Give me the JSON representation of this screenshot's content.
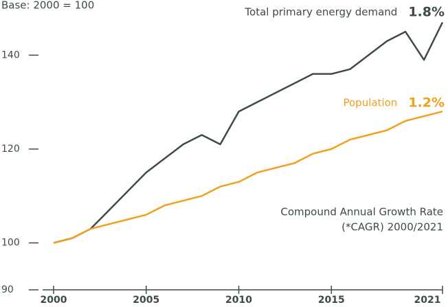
{
  "chart_data": {
    "type": "line",
    "subtitle": "Base: 2000 = 100",
    "x": [
      2000,
      2001,
      2002,
      2003,
      2004,
      2005,
      2006,
      2007,
      2008,
      2009,
      2010,
      2011,
      2012,
      2013,
      2014,
      2015,
      2016,
      2017,
      2018,
      2019,
      2020,
      2021
    ],
    "series": [
      {
        "name": "Total primary energy demand",
        "color": "#3d4a4c",
        "cagr": "1.8%",
        "values": [
          100,
          101,
          103,
          107,
          111,
          115,
          118,
          121,
          123,
          121,
          128,
          130,
          132,
          134,
          136,
          136,
          137,
          140,
          143,
          145,
          139,
          147
        ]
      },
      {
        "name": "Population",
        "color": "#f0a01e",
        "cagr": "1.2%",
        "values": [
          100,
          101,
          103,
          104,
          105,
          106,
          108,
          109,
          110,
          112,
          113,
          115,
          116,
          117,
          119,
          120,
          122,
          123,
          124,
          126,
          127,
          128
        ]
      }
    ],
    "note": [
      "Compound Annual Growth Rate",
      "(*CAGR) 2000/2021"
    ],
    "xlim": [
      2000,
      2021
    ],
    "xticks": [
      2000,
      2005,
      2010,
      2015,
      2021
    ],
    "ylim": [
      90,
      150
    ],
    "yticks": [
      90,
      100,
      120,
      140
    ]
  }
}
